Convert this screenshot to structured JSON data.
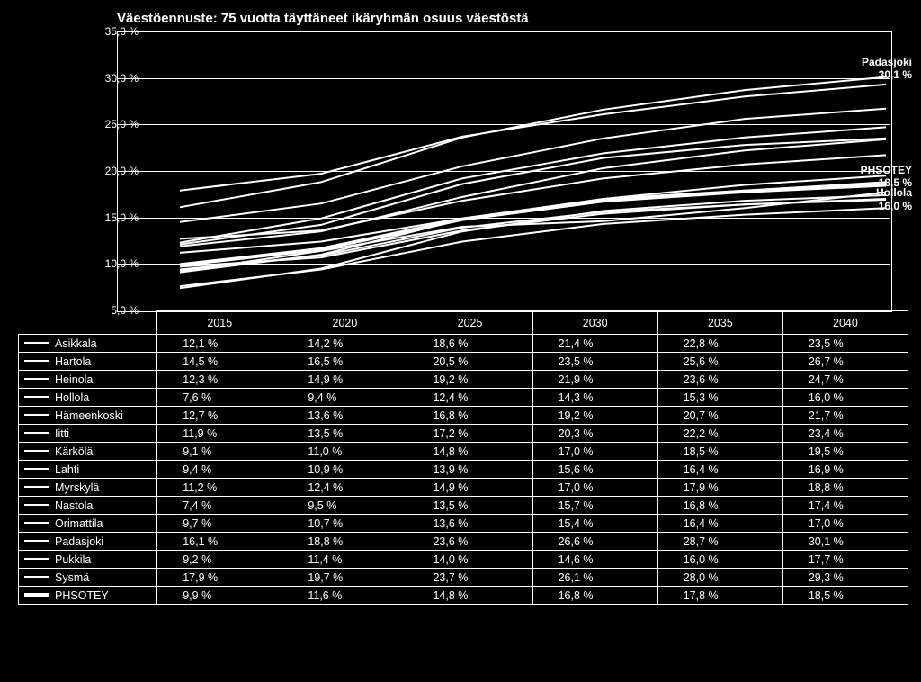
{
  "chart": {
    "title": "Väestöennuste: 75 vuotta täyttäneet ikäryhmän osuus väestöstä",
    "type": "line",
    "background_color": "#000000",
    "line_color": "#ffffff",
    "grid_color": "#ffffff",
    "text_color": "#ffffff",
    "title_fontsize": 15,
    "label_fontsize": 12,
    "ylim": [
      5,
      35
    ],
    "yticks": [
      5,
      10,
      15,
      20,
      25,
      30,
      35
    ],
    "ytick_labels": [
      "5,0 %",
      "10,0 %",
      "15,0 %",
      "20,0 %",
      "25,0 %",
      "30,0 %",
      "35,0 %"
    ],
    "x_categories": [
      "2015",
      "2020",
      "2025",
      "2030",
      "2035",
      "2040"
    ],
    "line_width_default": 2,
    "line_width_bold": 4,
    "annotations": [
      {
        "label": "Padasjoki",
        "value": "30,1 %",
        "y": 30.1
      },
      {
        "label": "PHSOTEY",
        "value": "18,5 %",
        "y": 18.5
      },
      {
        "label": "Hollola",
        "value": "16,0 %",
        "y": 16.0
      }
    ],
    "series": [
      {
        "name": "Asikkala",
        "bold": false,
        "values": [
          12.1,
          14.2,
          18.6,
          21.4,
          22.8,
          23.5
        ]
      },
      {
        "name": "Hartola",
        "bold": false,
        "values": [
          14.5,
          16.5,
          20.5,
          23.5,
          25.6,
          26.7
        ]
      },
      {
        "name": "Heinola",
        "bold": false,
        "values": [
          12.3,
          14.9,
          19.2,
          21.9,
          23.6,
          24.7
        ]
      },
      {
        "name": "Hollola",
        "bold": false,
        "values": [
          7.6,
          9.4,
          12.4,
          14.3,
          15.3,
          16.0
        ]
      },
      {
        "name": "Hämeenkoski",
        "bold": false,
        "values": [
          12.7,
          13.6,
          16.8,
          19.2,
          20.7,
          21.7
        ]
      },
      {
        "name": "Iitti",
        "bold": false,
        "values": [
          11.9,
          13.5,
          17.2,
          20.3,
          22.2,
          23.4
        ]
      },
      {
        "name": "Kärkölä",
        "bold": false,
        "values": [
          9.1,
          11.0,
          14.8,
          17.0,
          18.5,
          19.5
        ]
      },
      {
        "name": "Lahti",
        "bold": false,
        "values": [
          9.4,
          10.9,
          13.9,
          15.6,
          16.4,
          16.9
        ]
      },
      {
        "name": "Myrskylä",
        "bold": false,
        "values": [
          11.2,
          12.4,
          14.9,
          17.0,
          17.9,
          18.8
        ]
      },
      {
        "name": "Nastola",
        "bold": false,
        "values": [
          7.4,
          9.5,
          13.5,
          15.7,
          16.8,
          17.4
        ]
      },
      {
        "name": "Orimattila",
        "bold": false,
        "values": [
          9.7,
          10.7,
          13.6,
          15.4,
          16.4,
          17.0
        ]
      },
      {
        "name": "Padasjoki",
        "bold": false,
        "values": [
          16.1,
          18.8,
          23.6,
          26.6,
          28.7,
          30.1
        ]
      },
      {
        "name": "Pukkila",
        "bold": false,
        "values": [
          9.2,
          11.4,
          14.0,
          14.6,
          16.0,
          17.7
        ]
      },
      {
        "name": "Sysmä",
        "bold": false,
        "values": [
          17.9,
          19.7,
          23.7,
          26.1,
          28.0,
          29.3
        ]
      },
      {
        "name": "PHSOTEY",
        "bold": true,
        "values": [
          9.9,
          11.6,
          14.8,
          16.8,
          17.8,
          18.5
        ]
      }
    ]
  },
  "table": {
    "columns": [
      "2015",
      "2020",
      "2025",
      "2030",
      "2035",
      "2040"
    ],
    "rows": [
      {
        "label": "Asikkala",
        "bold": false,
        "cells": [
          "12,1 %",
          "14,2 %",
          "18,6 %",
          "21,4 %",
          "22,8 %",
          "23,5 %"
        ]
      },
      {
        "label": "Hartola",
        "bold": false,
        "cells": [
          "14,5 %",
          "16,5 %",
          "20,5 %",
          "23,5 %",
          "25,6 %",
          "26,7 %"
        ]
      },
      {
        "label": "Heinola",
        "bold": false,
        "cells": [
          "12,3 %",
          "14,9 %",
          "19,2 %",
          "21,9 %",
          "23,6 %",
          "24,7 %"
        ]
      },
      {
        "label": "Hollola",
        "bold": false,
        "cells": [
          "7,6 %",
          "9,4 %",
          "12,4 %",
          "14,3 %",
          "15,3 %",
          "16,0 %"
        ]
      },
      {
        "label": "Hämeenkoski",
        "bold": false,
        "cells": [
          "12,7 %",
          "13,6 %",
          "16,8 %",
          "19,2 %",
          "20,7 %",
          "21,7 %"
        ]
      },
      {
        "label": "Iitti",
        "bold": false,
        "cells": [
          "11,9 %",
          "13,5 %",
          "17,2 %",
          "20,3 %",
          "22,2 %",
          "23,4 %"
        ]
      },
      {
        "label": "Kärkölä",
        "bold": false,
        "cells": [
          "9,1 %",
          "11,0 %",
          "14,8 %",
          "17,0 %",
          "18,5 %",
          "19,5 %"
        ]
      },
      {
        "label": "Lahti",
        "bold": false,
        "cells": [
          "9,4 %",
          "10,9 %",
          "13,9 %",
          "15,6 %",
          "16,4 %",
          "16,9 %"
        ]
      },
      {
        "label": "Myrskylä",
        "bold": false,
        "cells": [
          "11,2 %",
          "12,4 %",
          "14,9 %",
          "17,0 %",
          "17,9 %",
          "18,8 %"
        ]
      },
      {
        "label": "Nastola",
        "bold": false,
        "cells": [
          "7,4 %",
          "9,5 %",
          "13,5 %",
          "15,7 %",
          "16,8 %",
          "17,4 %"
        ]
      },
      {
        "label": "Orimattila",
        "bold": false,
        "cells": [
          "9,7 %",
          "10,7 %",
          "13,6 %",
          "15,4 %",
          "16,4 %",
          "17,0 %"
        ]
      },
      {
        "label": "Padasjoki",
        "bold": false,
        "cells": [
          "16,1 %",
          "18,8 %",
          "23,6 %",
          "26,6 %",
          "28,7 %",
          "30,1 %"
        ]
      },
      {
        "label": "Pukkila",
        "bold": false,
        "cells": [
          "9,2 %",
          "11,4 %",
          "14,0 %",
          "14,6 %",
          "16,0 %",
          "17,7 %"
        ]
      },
      {
        "label": "Sysmä",
        "bold": false,
        "cells": [
          "17,9 %",
          "19,7 %",
          "23,7 %",
          "26,1 %",
          "28,0 %",
          "29,3 %"
        ]
      },
      {
        "label": "PHSOTEY",
        "bold": true,
        "cells": [
          "9,9 %",
          "11,6 %",
          "14,8 %",
          "16,8 %",
          "17,8 %",
          "18,5 %"
        ]
      }
    ]
  }
}
